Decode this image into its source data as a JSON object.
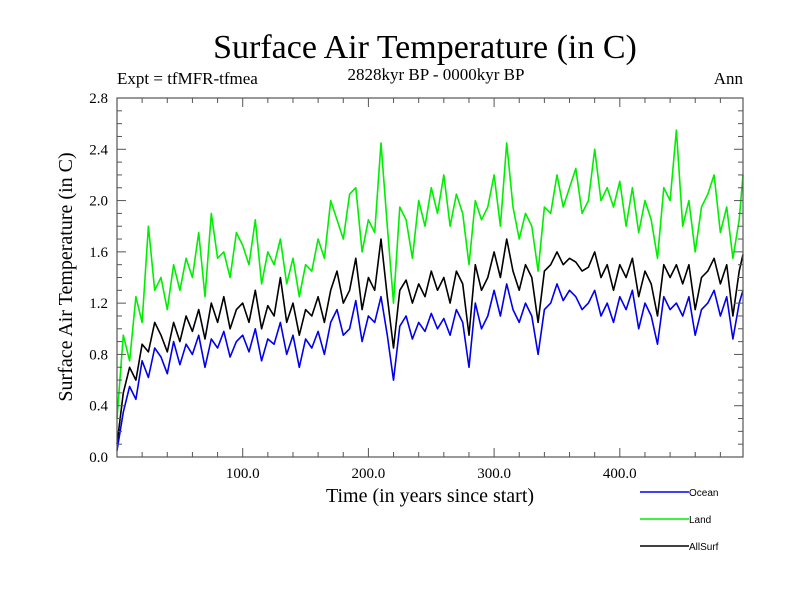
{
  "chart_data": {
    "type": "line",
    "title": "Surface Air Temperature (in C)",
    "subtitle_left": "Expt = tfMFR-tfmea",
    "subtitle_center": "2828kyr BP - 0000kyr BP",
    "subtitle_right": "Ann",
    "xlabel": "Time (in years since start)",
    "ylabel": "Surface Air Temperature (in C)",
    "xlim": [
      0,
      498
    ],
    "ylim": [
      0.0,
      2.8
    ],
    "xticks": [
      100,
      200,
      300,
      400
    ],
    "xtick_labels": [
      "100.0",
      "200.0",
      "300.0",
      "400.0"
    ],
    "xminor_step": 20,
    "yticks": [
      0.0,
      0.4,
      0.8,
      1.2,
      1.6,
      2.0,
      2.4,
      2.8
    ],
    "ytick_labels": [
      "0.0",
      "0.4",
      "0.8",
      "1.2",
      "1.6",
      "2.0",
      "2.4",
      "2.8"
    ],
    "yminor_step": 0.1,
    "grid": false,
    "legend_position": "bottom-right, below plot",
    "x": [
      0,
      5,
      10,
      15,
      20,
      25,
      30,
      35,
      40,
      45,
      50,
      55,
      60,
      65,
      70,
      75,
      80,
      85,
      90,
      95,
      100,
      105,
      110,
      115,
      120,
      125,
      130,
      135,
      140,
      145,
      150,
      155,
      160,
      165,
      170,
      175,
      180,
      185,
      190,
      195,
      200,
      205,
      210,
      215,
      220,
      225,
      230,
      235,
      240,
      245,
      250,
      255,
      260,
      265,
      270,
      275,
      280,
      285,
      290,
      295,
      300,
      305,
      310,
      315,
      320,
      325,
      330,
      335,
      340,
      345,
      350,
      355,
      360,
      365,
      370,
      375,
      380,
      385,
      390,
      395,
      400,
      405,
      410,
      415,
      420,
      425,
      430,
      435,
      440,
      445,
      450,
      455,
      460,
      465,
      470,
      475,
      480,
      485,
      490,
      495,
      498
    ],
    "series": [
      {
        "name": "Ocean",
        "color": "#0000ee",
        "values": [
          0.05,
          0.35,
          0.55,
          0.45,
          0.75,
          0.62,
          0.85,
          0.78,
          0.65,
          0.9,
          0.72,
          0.88,
          0.8,
          0.95,
          0.7,
          0.92,
          0.85,
          0.98,
          0.78,
          0.9,
          0.95,
          0.82,
          1.0,
          0.75,
          0.92,
          0.88,
          1.05,
          0.8,
          0.95,
          0.7,
          0.92,
          0.85,
          0.98,
          0.8,
          1.05,
          1.15,
          0.95,
          1.0,
          1.22,
          0.9,
          1.1,
          1.05,
          1.25,
          0.95,
          0.6,
          1.02,
          1.1,
          0.92,
          1.05,
          0.98,
          1.12,
          1.0,
          1.08,
          0.95,
          1.15,
          1.05,
          0.7,
          1.2,
          1.0,
          1.1,
          1.3,
          1.1,
          1.35,
          1.15,
          1.05,
          1.2,
          1.1,
          0.8,
          1.15,
          1.2,
          1.35,
          1.22,
          1.3,
          1.25,
          1.15,
          1.2,
          1.3,
          1.1,
          1.2,
          1.05,
          1.25,
          1.15,
          1.3,
          1.0,
          1.2,
          1.1,
          0.88,
          1.25,
          1.15,
          1.2,
          1.1,
          1.25,
          0.95,
          1.15,
          1.2,
          1.3,
          1.1,
          1.25,
          0.92,
          1.2,
          1.3
        ]
      },
      {
        "name": "Land",
        "color": "#00ee00",
        "values": [
          0.3,
          0.95,
          0.75,
          1.25,
          1.05,
          1.8,
          1.3,
          1.4,
          1.15,
          1.5,
          1.3,
          1.55,
          1.4,
          1.75,
          1.25,
          1.9,
          1.55,
          1.6,
          1.4,
          1.75,
          1.65,
          1.5,
          1.85,
          1.35,
          1.6,
          1.5,
          1.7,
          1.35,
          1.55,
          1.25,
          1.5,
          1.45,
          1.7,
          1.55,
          2.0,
          1.85,
          1.7,
          2.05,
          2.1,
          1.6,
          1.85,
          1.75,
          2.45,
          1.8,
          1.2,
          1.95,
          1.85,
          1.55,
          2.0,
          1.8,
          2.1,
          1.9,
          2.2,
          1.8,
          2.05,
          1.9,
          1.5,
          2.0,
          1.85,
          1.95,
          2.2,
          1.8,
          2.45,
          1.95,
          1.7,
          1.9,
          1.8,
          1.45,
          1.95,
          1.9,
          2.2,
          1.95,
          2.1,
          2.25,
          1.9,
          2.0,
          2.4,
          2.0,
          2.1,
          1.95,
          2.15,
          1.8,
          2.1,
          1.75,
          2.0,
          1.85,
          1.55,
          2.1,
          2.0,
          2.55,
          1.8,
          2.0,
          1.6,
          1.95,
          2.05,
          2.2,
          1.75,
          1.95,
          1.55,
          1.85,
          2.2
        ]
      },
      {
        "name": "AllSurf",
        "color": "#000000",
        "values": [
          0.1,
          0.5,
          0.7,
          0.6,
          0.88,
          0.82,
          1.05,
          0.95,
          0.82,
          1.05,
          0.9,
          1.1,
          0.98,
          1.15,
          0.92,
          1.2,
          1.05,
          1.25,
          1.0,
          1.15,
          1.2,
          1.05,
          1.3,
          1.0,
          1.18,
          1.1,
          1.4,
          1.05,
          1.2,
          0.95,
          1.15,
          1.1,
          1.25,
          1.05,
          1.3,
          1.45,
          1.2,
          1.3,
          1.55,
          1.15,
          1.4,
          1.3,
          1.7,
          1.25,
          0.85,
          1.3,
          1.38,
          1.2,
          1.35,
          1.25,
          1.45,
          1.3,
          1.4,
          1.2,
          1.45,
          1.35,
          0.95,
          1.5,
          1.3,
          1.4,
          1.6,
          1.4,
          1.7,
          1.45,
          1.3,
          1.5,
          1.4,
          1.05,
          1.45,
          1.5,
          1.6,
          1.5,
          1.55,
          1.52,
          1.45,
          1.48,
          1.6,
          1.4,
          1.5,
          1.3,
          1.5,
          1.4,
          1.55,
          1.25,
          1.45,
          1.35,
          1.1,
          1.5,
          1.4,
          1.5,
          1.35,
          1.5,
          1.15,
          1.4,
          1.45,
          1.55,
          1.35,
          1.5,
          1.1,
          1.45,
          1.58
        ]
      }
    ]
  }
}
